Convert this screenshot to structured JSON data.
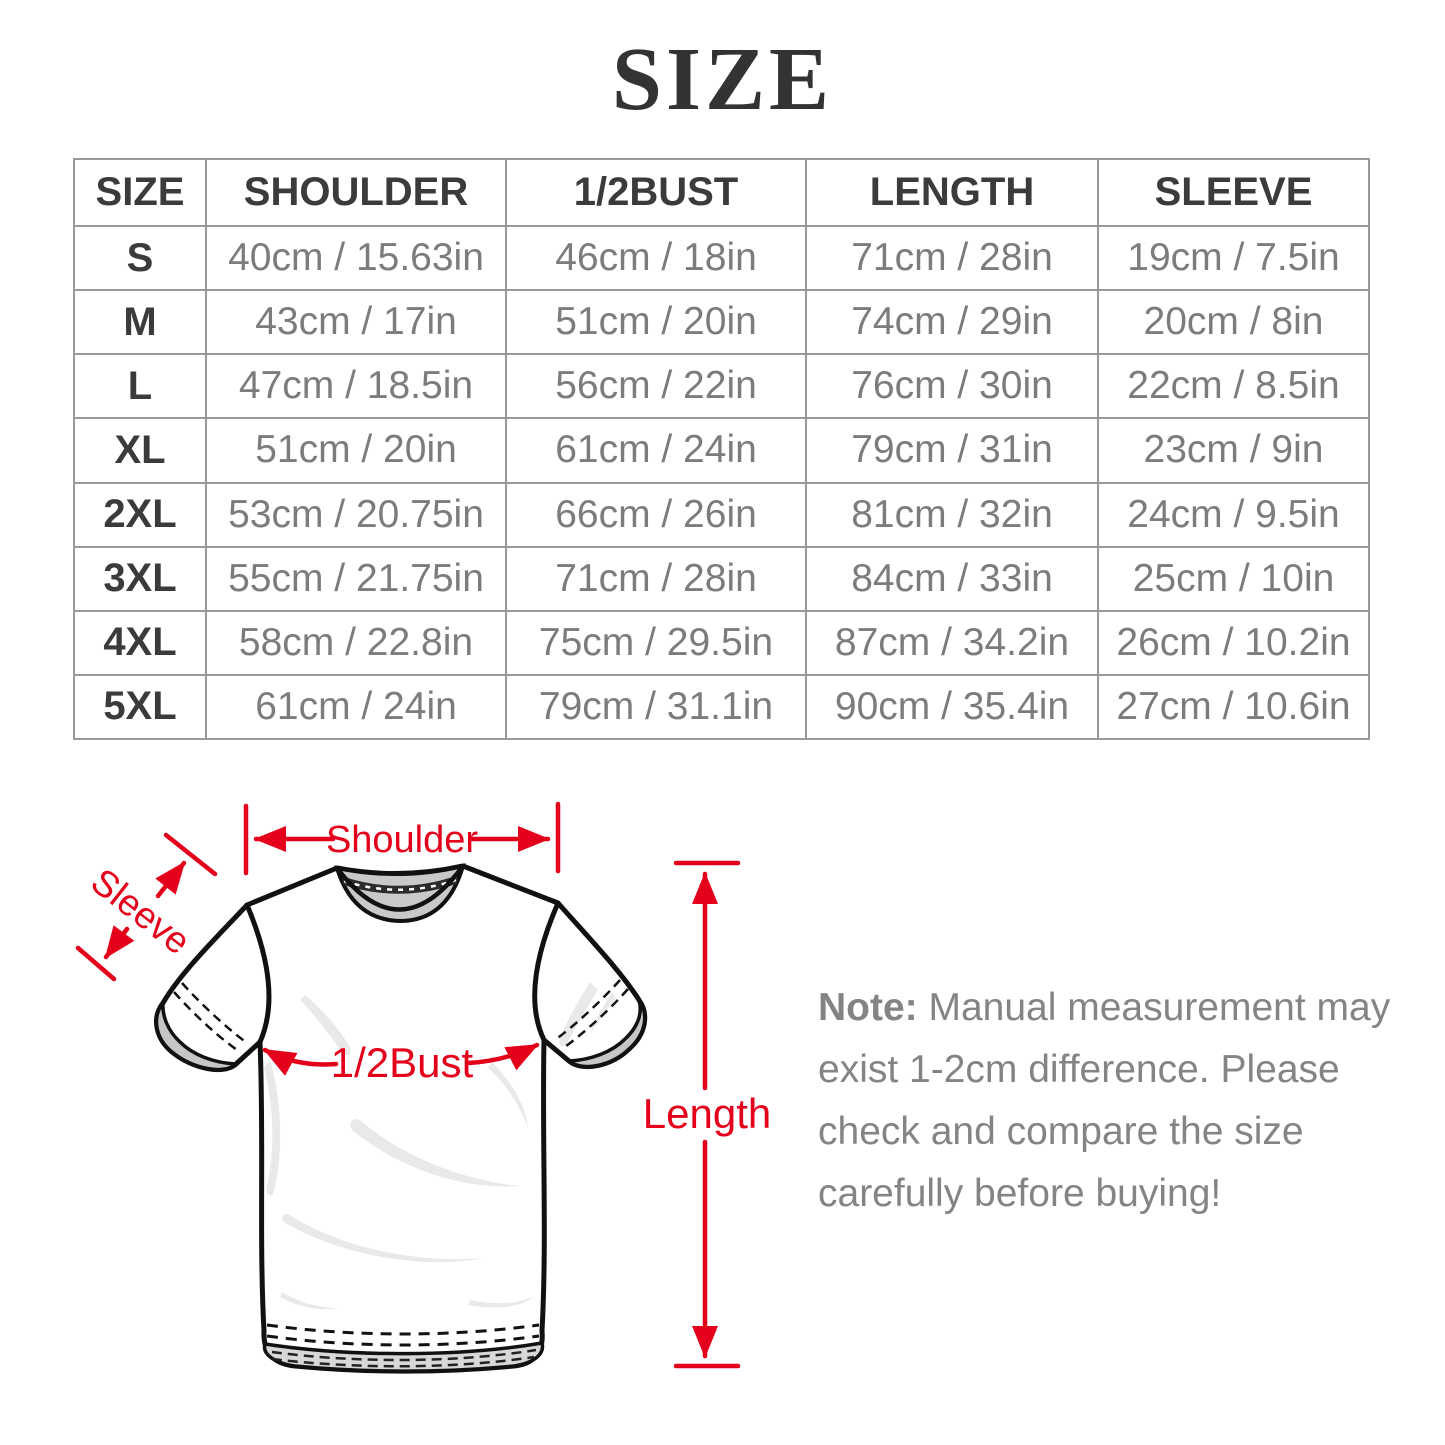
{
  "title": "SIZE",
  "size_table": {
    "columns": [
      "SIZE",
      "SHOULDER",
      "1/2BUST",
      "LENGTH",
      "SLEEVE"
    ],
    "rows": [
      {
        "size": "S",
        "cells": [
          "40cm / 15.63in",
          "46cm / 18in",
          "71cm / 28in",
          "19cm / 7.5in"
        ]
      },
      {
        "size": "M",
        "cells": [
          "43cm / 17in",
          "51cm / 20in",
          "74cm / 29in",
          "20cm / 8in"
        ]
      },
      {
        "size": "L",
        "cells": [
          "47cm / 18.5in",
          "56cm / 22in",
          "76cm / 30in",
          "22cm / 8.5in"
        ]
      },
      {
        "size": "XL",
        "cells": [
          "51cm / 20in",
          "61cm / 24in",
          "79cm / 31in",
          "23cm / 9in"
        ]
      },
      {
        "size": "2XL",
        "cells": [
          "53cm / 20.75in",
          "66cm / 26in",
          "81cm / 32in",
          "24cm / 9.5in"
        ]
      },
      {
        "size": "3XL",
        "cells": [
          "55cm / 21.75in",
          "71cm / 28in",
          "84cm / 33in",
          "25cm / 10in"
        ]
      },
      {
        "size": "4XL",
        "cells": [
          "58cm / 22.8in",
          "75cm / 29.5in",
          "87cm / 34.2in",
          "26cm / 10.2in"
        ]
      },
      {
        "size": "5XL",
        "cells": [
          "61cm / 24in",
          "79cm / 31.1in",
          "90cm / 35.4in",
          "27cm / 10.6in"
        ]
      }
    ]
  },
  "diagram": {
    "labels": {
      "shoulder": "Shoulder",
      "sleeve": "Sleeve",
      "half_bust": "1/2Bust",
      "length": "Length"
    },
    "accent_color": "#e4001b"
  },
  "note": {
    "prefix": "Note:",
    "lines": [
      "Manual measurement may",
      "exist 1-2cm difference. Please",
      "check and compare the size",
      "carefully before buying!"
    ]
  },
  "colors": {
    "accent": "#e4001b",
    "table_border": "#999999",
    "header_text": "#3b3b3b",
    "cell_text": "#7c7c7c",
    "note_text": "#848484",
    "title_text": "#333333"
  }
}
